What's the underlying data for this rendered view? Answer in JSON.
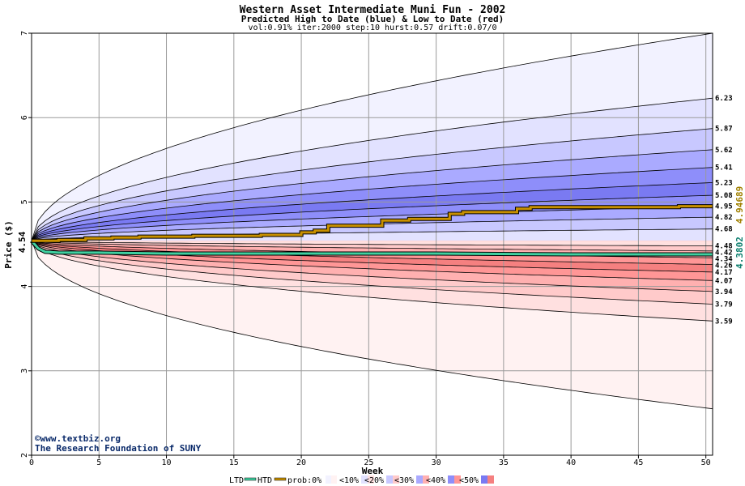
{
  "chart_data": {
    "type": "area",
    "title": "Western Asset Intermediate Muni Fun - 2002",
    "subtitle": "Predicted High to Date (blue) &  Low to Date (red)",
    "params": "vol:0.91% iter:2000 step:10 hurst:0.57 drift:0.07/0",
    "xlabel": "Week",
    "ylabel": "Price ($)",
    "xlim": [
      0,
      50.5
    ],
    "ylim": [
      2,
      7
    ],
    "x_ticks": [
      0,
      5,
      10,
      15,
      20,
      25,
      30,
      35,
      40,
      45,
      50
    ],
    "y_ticks": [
      2,
      3,
      4,
      5,
      6,
      7
    ],
    "grid": true,
    "start_value": "4.54",
    "credit_line1": "©www.textbiz.org",
    "credit_line2": "The Research Foundation of SUNY",
    "side_labels": {
      "htd_value": "4.94689",
      "ltd_value": "4.3802"
    },
    "colors": {
      "outer_blue": "#f2f2ff",
      "blue_10": "#e2e2ff",
      "blue_20": "#c8c8ff",
      "blue_30": "#aaaaff",
      "blue_40": "#8e8efa",
      "blue_50": "#7a7af2",
      "outer_red": "#fff2f2",
      "red_10": "#ffe0e0",
      "red_20": "#ffcaca",
      "red_30": "#ffb0b0",
      "red_40": "#ff9696",
      "red_50": "#f58080",
      "htd_line": "#c89000",
      "ltd_line": "#40d0a0",
      "htd_label": "#a08000",
      "ltd_label": "#108070",
      "credit": "#0a2a6a"
    },
    "upper_bands_final": [
      7.0,
      6.23,
      5.87,
      5.62,
      5.41,
      5.23,
      5.08,
      4.95,
      4.82,
      4.68
    ],
    "lower_bands_final": [
      4.48,
      4.42,
      4.34,
      4.26,
      4.17,
      4.07,
      3.94,
      3.79,
      3.59,
      2.55
    ],
    "right_labels": [
      "6.23",
      "5.87",
      "5.62",
      "5.41",
      "5.23",
      "5.08",
      "4.95",
      "4.82",
      "4.68",
      "4.48",
      "4.42",
      "4.34",
      "4.26",
      "4.17",
      "4.07",
      "3.94",
      "3.79",
      "3.59"
    ],
    "htd_series": {
      "x": [
        0,
        1,
        2,
        4,
        6,
        8,
        10,
        12,
        14,
        16,
        17,
        19,
        20,
        21,
        22,
        25,
        26,
        28,
        30,
        31,
        32,
        35,
        36,
        37,
        40,
        44,
        48,
        50.5
      ],
      "y": [
        4.54,
        4.54,
        4.55,
        4.57,
        4.58,
        4.59,
        4.59,
        4.6,
        4.6,
        4.6,
        4.61,
        4.61,
        4.64,
        4.66,
        4.72,
        4.72,
        4.78,
        4.8,
        4.8,
        4.86,
        4.88,
        4.88,
        4.92,
        4.94,
        4.94,
        4.94,
        4.95,
        4.95
      ]
    },
    "ltd_series": {
      "x": [
        0,
        0.5,
        1,
        2,
        5,
        10,
        20,
        30,
        40,
        50.5
      ],
      "y": [
        4.54,
        4.45,
        4.41,
        4.4,
        4.4,
        4.39,
        4.39,
        4.39,
        4.38,
        4.38
      ]
    },
    "legend": {
      "ltd": "LTD",
      "htd": "HTD",
      "prob": "prob:0%",
      "items": [
        "<10%",
        "<20%",
        "<30%",
        "<40%",
        "<50%"
      ]
    }
  }
}
